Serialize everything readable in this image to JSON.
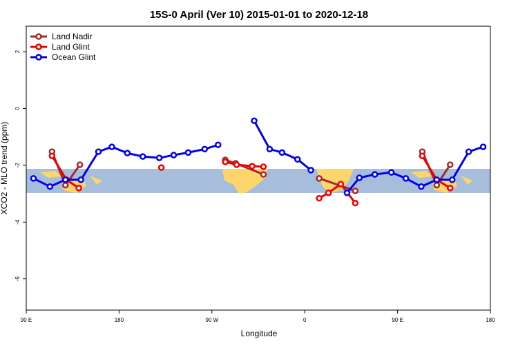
{
  "chart_data": {
    "type": "line",
    "title": "15S-0 April (Ver 10)   2015-01-01 to 2020-12-18",
    "xlabel": "Longitude",
    "ylabel": "XCO2 - MLO trend (ppm)",
    "xlim": [
      90,
      540
    ],
    "ylim": [
      -7.1,
      2.9
    ],
    "xticks": [
      {
        "value": 90,
        "label": "90 E"
      },
      180,
      {
        "value": 270,
        "label": "90 W"
      },
      {
        "value": 360,
        "label": "0"
      },
      {
        "value": 450,
        "label": "90 E"
      },
      {
        "value": 540,
        "label": "180"
      }
    ],
    "yticks": [
      -6,
      -4,
      -2,
      0,
      2
    ],
    "legend": "top-left",
    "series": [
      {
        "name": "Land Nadir",
        "color": "#a52a2a",
        "x": [
          115,
          128,
          142,
          null,
          283,
          293,
          320,
          null,
          374,
          409,
          null,
          474,
          488,
          501
        ],
        "values": [
          -1.52,
          -2.7,
          -1.98,
          null,
          -1.81,
          -1.93,
          -2.32,
          null,
          -2.46,
          -2.9,
          null,
          -1.52,
          -2.7,
          -1.98
        ]
      },
      {
        "name": "Land Glint",
        "color": "#ee0000",
        "x": [
          115,
          129,
          141,
          null,
          221,
          null,
          283,
          294,
          309,
          320,
          null,
          374,
          383,
          395,
          409,
          null,
          474,
          488,
          501
        ],
        "values": [
          -1.67,
          -2.51,
          -2.8,
          null,
          -2.08,
          null,
          -1.88,
          -1.98,
          -2.03,
          -2.05,
          null,
          -3.16,
          -2.97,
          -2.66,
          -3.33,
          null,
          -1.67,
          -2.51,
          -2.8
        ]
      },
      {
        "name": "Ocean Glint",
        "color": "#0000ee",
        "x": [
          97,
          113,
          128,
          143,
          160,
          173,
          188,
          203,
          219,
          233,
          247,
          263,
          276,
          null,
          311,
          326,
          338,
          353,
          366,
          null,
          401,
          413,
          428,
          444,
          458,
          473,
          488,
          503,
          519,
          533
        ],
        "values": [
          -2.46,
          -2.75,
          -2.51,
          -2.51,
          -1.52,
          -1.35,
          -1.57,
          -1.69,
          -1.74,
          -1.64,
          -1.55,
          -1.43,
          -1.28,
          null,
          -0.43,
          -1.43,
          -1.55,
          -1.79,
          -2.17,
          null,
          -2.97,
          -2.44,
          -2.32,
          -2.25,
          -2.46,
          -2.75,
          -2.51,
          -2.51,
          -1.52,
          -1.35
        ]
      }
    ]
  }
}
